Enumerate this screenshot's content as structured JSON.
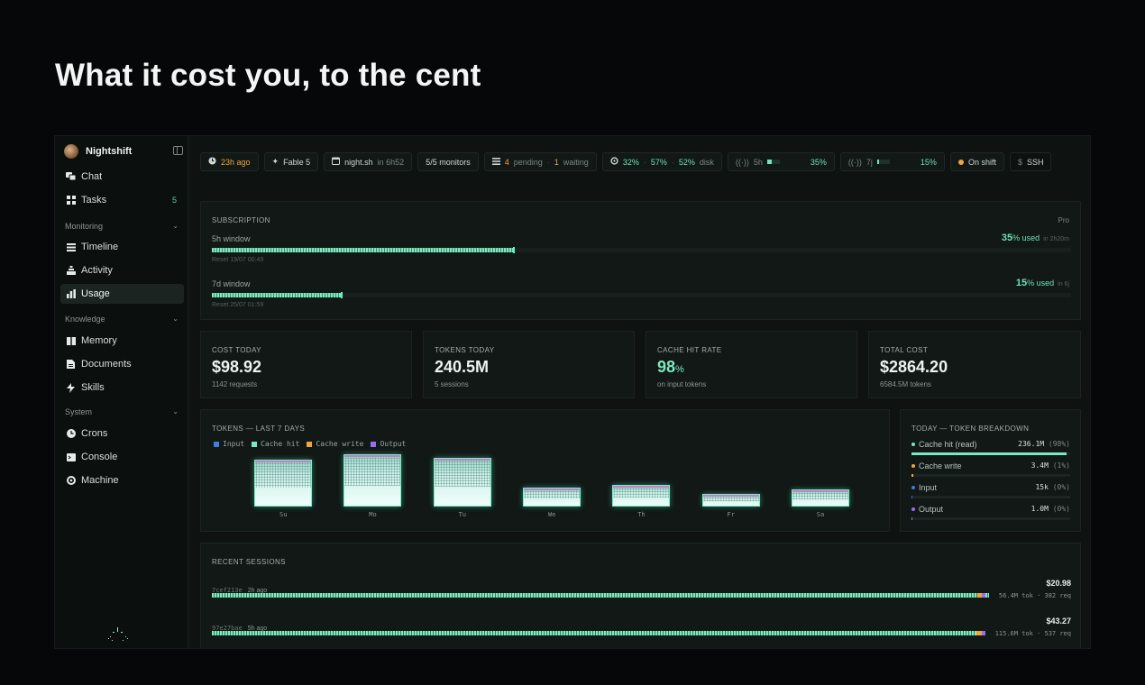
{
  "headline": "What it cost you, to the cent",
  "sidebar": {
    "brand": "Nightshift",
    "items": [
      {
        "label": "Chat",
        "icon": "chat-icon"
      },
      {
        "label": "Tasks",
        "icon": "grid-icon",
        "count": "5"
      }
    ],
    "sections": [
      {
        "label": "Monitoring",
        "items": [
          {
            "label": "Timeline"
          },
          {
            "label": "Activity"
          },
          {
            "label": "Usage"
          }
        ]
      },
      {
        "label": "Knowledge",
        "items": [
          {
            "label": "Memory"
          },
          {
            "label": "Documents"
          },
          {
            "label": "Skills"
          }
        ]
      },
      {
        "label": "System",
        "items": [
          {
            "label": "Crons"
          },
          {
            "label": "Console"
          },
          {
            "label": "Machine"
          }
        ]
      }
    ]
  },
  "toolbar": {
    "ago": "23h ago",
    "model": "Fable 5",
    "script": "night.sh",
    "script_in": "in 6h52",
    "monitors": "5/5 monitors",
    "pending_count": "4",
    "pending_label": "pending",
    "waiting_count": "1",
    "waiting_label": "waiting",
    "cpu": "32%",
    "mem": "57%",
    "disk_pct": "52%",
    "disk_label": "disk",
    "win5_label": "5h",
    "win5_pct": "35%",
    "win5_fill": 0.35,
    "win7_label": "7j",
    "win7_pct": "15%",
    "win7_fill": 0.15,
    "shift": "On shift",
    "ssh": "SSH",
    "ssh_prefix": "$"
  },
  "subscription": {
    "label": "SUBSCRIPTION",
    "plan": "Pro",
    "windows": [
      {
        "label": "5h window",
        "used_pct": "35",
        "used_suffix": "% used",
        "reset_in": "in 2h20m",
        "reset": "Reset 19/07 00:49",
        "fill": 0.35
      },
      {
        "label": "7d window",
        "used_pct": "15",
        "used_suffix": "% used",
        "reset_in": "in 6j",
        "reset": "Reset 25/07 01:59",
        "fill": 0.15
      }
    ]
  },
  "stats": [
    {
      "label": "COST TODAY",
      "value": "$98.92",
      "sub": "1142 requests"
    },
    {
      "label": "TOKENS TODAY",
      "value": "240.5M",
      "sub": "5 sessions"
    },
    {
      "label": "CACHE HIT RATE",
      "value": "98",
      "unit": "%",
      "sub": "on input tokens"
    },
    {
      "label": "TOTAL COST",
      "value": "$2864.20",
      "sub": "6584.5M tokens"
    }
  ],
  "chart_data": {
    "type": "bar",
    "title": "TOKENS — LAST 7 DAYS",
    "categories": [
      "Su",
      "Mo",
      "Tu",
      "We",
      "Th",
      "Fr",
      "Sa"
    ],
    "legend": [
      "Input",
      "Cache hit",
      "Cache write",
      "Output"
    ],
    "legend_colors": [
      "#3d7ee0",
      "#79e9c0",
      "#f0a53a",
      "#9b6cf0"
    ],
    "values": [
      55,
      62,
      58,
      22,
      26,
      15,
      20
    ],
    "ylim": [
      0,
      64
    ]
  },
  "breakdown": {
    "label": "TODAY — TOKEN BREAKDOWN",
    "rows": [
      {
        "name": "Cache hit (read)",
        "value": "236.1M",
        "pct": "(98%)",
        "color": "#79e9c0",
        "fill": 0.98
      },
      {
        "name": "Cache write",
        "value": "3.4M",
        "pct": "(1%)",
        "color": "#f0a53a",
        "fill": 0.01
      },
      {
        "name": "Input",
        "value": "15k",
        "pct": "(0%)",
        "color": "#3d7ee0",
        "fill": 0.0
      },
      {
        "name": "Output",
        "value": "1.0M",
        "pct": "(0%)",
        "color": "#9b6cf0",
        "fill": 0.0
      }
    ]
  },
  "sessions": {
    "label": "RECENT SESSIONS",
    "rows": [
      {
        "id": "7cef213e",
        "ago": "2h ago",
        "cost": "$20.98",
        "meta": "56.4M tok · 382 req"
      },
      {
        "id": "97e27bae",
        "ago": "5h ago",
        "cost": "$43.27",
        "meta": "115.6M tok · 537 req"
      }
    ]
  }
}
